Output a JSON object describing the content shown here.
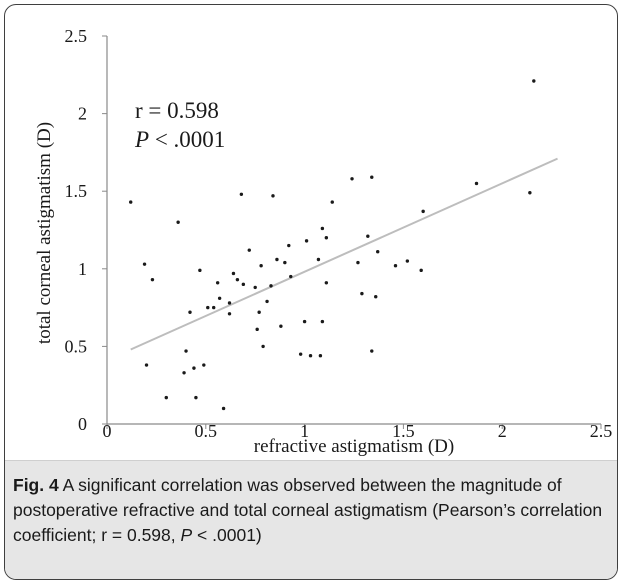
{
  "chart_data": {
    "type": "scatter",
    "xlabel": "refractive astigmatism (D)",
    "ylabel": "total corneal astigmatism (D)",
    "xlim": [
      0,
      2.5
    ],
    "ylim": [
      0,
      2.5
    ],
    "xticks": [
      "0",
      "0.5",
      "1",
      "1.5",
      "2",
      "2.5"
    ],
    "yticks": [
      "0",
      "0.5",
      "1",
      "1.5",
      "2",
      "2.5"
    ],
    "grid": false,
    "annotation_r": "r = 0.598",
    "annotation_p_symbol": "P",
    "annotation_p_value": " < .0001",
    "trendline": {
      "x": [
        0.12,
        2.28
      ],
      "y": [
        0.48,
        1.71
      ]
    },
    "points": [
      {
        "x": 0.12,
        "y": 1.43
      },
      {
        "x": 0.19,
        "y": 1.03
      },
      {
        "x": 0.2,
        "y": 0.38
      },
      {
        "x": 0.23,
        "y": 0.93
      },
      {
        "x": 0.3,
        "y": 0.17
      },
      {
        "x": 0.36,
        "y": 1.3
      },
      {
        "x": 0.39,
        "y": 0.33
      },
      {
        "x": 0.4,
        "y": 0.47
      },
      {
        "x": 0.42,
        "y": 0.72
      },
      {
        "x": 0.44,
        "y": 0.36
      },
      {
        "x": 0.45,
        "y": 0.17
      },
      {
        "x": 0.47,
        "y": 0.99
      },
      {
        "x": 0.49,
        "y": 0.38
      },
      {
        "x": 0.51,
        "y": 0.75
      },
      {
        "x": 0.54,
        "y": 0.75
      },
      {
        "x": 0.56,
        "y": 0.91
      },
      {
        "x": 0.57,
        "y": 0.81
      },
      {
        "x": 0.59,
        "y": 0.1
      },
      {
        "x": 0.62,
        "y": 0.78
      },
      {
        "x": 0.62,
        "y": 0.71
      },
      {
        "x": 0.64,
        "y": 0.97
      },
      {
        "x": 0.66,
        "y": 0.93
      },
      {
        "x": 0.68,
        "y": 1.48
      },
      {
        "x": 0.69,
        "y": 0.9
      },
      {
        "x": 0.72,
        "y": 1.12
      },
      {
        "x": 0.75,
        "y": 0.88
      },
      {
        "x": 0.76,
        "y": 0.61
      },
      {
        "x": 0.77,
        "y": 0.72
      },
      {
        "x": 0.78,
        "y": 1.02
      },
      {
        "x": 0.79,
        "y": 0.5
      },
      {
        "x": 0.81,
        "y": 0.79
      },
      {
        "x": 0.83,
        "y": 0.89
      },
      {
        "x": 0.84,
        "y": 1.47
      },
      {
        "x": 0.86,
        "y": 1.06
      },
      {
        "x": 0.88,
        "y": 0.63
      },
      {
        "x": 0.9,
        "y": 1.04
      },
      {
        "x": 0.92,
        "y": 1.15
      },
      {
        "x": 0.93,
        "y": 0.95
      },
      {
        "x": 0.98,
        "y": 0.45
      },
      {
        "x": 1.0,
        "y": 0.66
      },
      {
        "x": 1.01,
        "y": 1.18
      },
      {
        "x": 1.03,
        "y": 0.44
      },
      {
        "x": 1.07,
        "y": 1.06
      },
      {
        "x": 1.08,
        "y": 0.44
      },
      {
        "x": 1.09,
        "y": 0.66
      },
      {
        "x": 1.09,
        "y": 1.26
      },
      {
        "x": 1.11,
        "y": 1.2
      },
      {
        "x": 1.11,
        "y": 0.91
      },
      {
        "x": 1.14,
        "y": 1.43
      },
      {
        "x": 1.24,
        "y": 1.58
      },
      {
        "x": 1.27,
        "y": 1.04
      },
      {
        "x": 1.29,
        "y": 0.84
      },
      {
        "x": 1.32,
        "y": 1.21
      },
      {
        "x": 1.34,
        "y": 1.59
      },
      {
        "x": 1.34,
        "y": 0.47
      },
      {
        "x": 1.36,
        "y": 0.82
      },
      {
        "x": 1.37,
        "y": 1.11
      },
      {
        "x": 1.46,
        "y": 1.02
      },
      {
        "x": 1.52,
        "y": 1.05
      },
      {
        "x": 1.59,
        "y": 0.99
      },
      {
        "x": 1.6,
        "y": 1.37
      },
      {
        "x": 1.87,
        "y": 1.55
      },
      {
        "x": 2.14,
        "y": 1.49
      },
      {
        "x": 2.16,
        "y": 2.21
      }
    ]
  },
  "caption": {
    "label": "Fig. 4",
    "text": " A significant correlation was observed between the magnitude of postoperative refractive and total corneal astigmatism (Pearson’s correlation coefficient; r = 0.598, ",
    "p_symbol": "P",
    "p_tail": " < .0001)"
  }
}
